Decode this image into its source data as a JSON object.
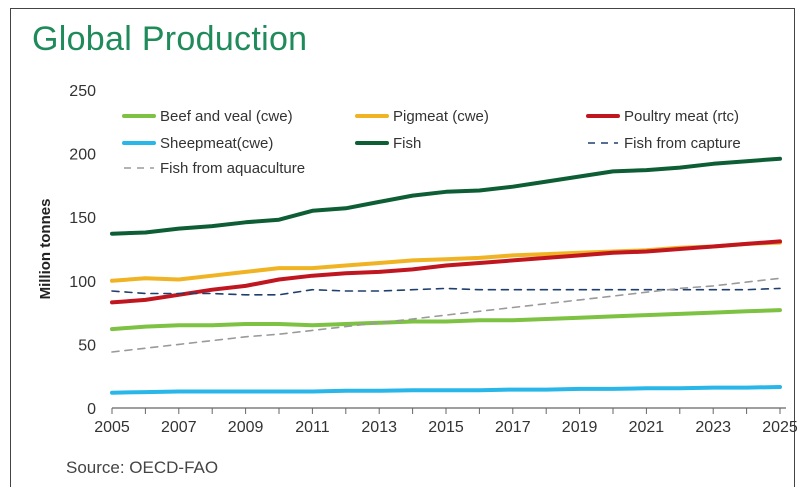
{
  "title": "Global Production",
  "source": "Source: OECD-FAO",
  "chart_data": {
    "type": "line",
    "title": "Global Production",
    "xlabel": "",
    "ylabel": "Million tonnes",
    "ylim": [
      0,
      250
    ],
    "yticks": [
      "0",
      "50",
      "100",
      "150",
      "200",
      "250"
    ],
    "xticks": [
      "2005",
      "2007",
      "2009",
      "2011",
      "2013",
      "2015",
      "2017",
      "2019",
      "2021",
      "2023",
      "2025"
    ],
    "x": [
      2005,
      2006,
      2007,
      2008,
      2009,
      2010,
      2011,
      2012,
      2013,
      2014,
      2015,
      2016,
      2017,
      2018,
      2019,
      2020,
      2021,
      2022,
      2023,
      2024,
      2025
    ],
    "series": [
      {
        "name": "Beef and veal (cwe)",
        "color": "#7dc242",
        "style": "solid",
        "values": [
          62,
          64,
          65,
          65,
          66,
          66,
          65,
          66,
          67,
          68,
          68,
          69,
          69,
          70,
          71,
          72,
          73,
          74,
          75,
          76,
          77
        ]
      },
      {
        "name": "Pigmeat (cwe)",
        "color": "#f0b323",
        "style": "solid",
        "values": [
          100,
          102,
          101,
          104,
          107,
          110,
          110,
          112,
          114,
          116,
          117,
          118,
          120,
          121,
          122,
          123,
          124,
          126,
          127,
          129,
          130
        ]
      },
      {
        "name": "Poultry meat (rtc)",
        "color": "#c0161f",
        "style": "solid",
        "values": [
          83,
          85,
          89,
          93,
          96,
          101,
          104,
          106,
          107,
          109,
          112,
          114,
          116,
          118,
          120,
          122,
          123,
          125,
          127,
          129,
          131
        ]
      },
      {
        "name": "Sheepmeat(cwe)",
        "color": "#29b6e8",
        "style": "solid",
        "values": [
          12,
          12.5,
          13,
          13,
          13,
          13,
          13,
          13.5,
          13.5,
          14,
          14,
          14,
          14.5,
          14.5,
          15,
          15,
          15.5,
          15.5,
          16,
          16,
          16.5
        ]
      },
      {
        "name": "Fish",
        "color": "#0e5e35",
        "style": "solid",
        "values": [
          137,
          138,
          141,
          143,
          146,
          148,
          155,
          157,
          162,
          167,
          170,
          171,
          174,
          178,
          182,
          186,
          187,
          189,
          192,
          194,
          196
        ]
      },
      {
        "name": "Fish from capture",
        "color": "#1f3f6e",
        "style": "dashed",
        "values": [
          92,
          90,
          90,
          90,
          89,
          89,
          93,
          92,
          92,
          93,
          94,
          93,
          93,
          93,
          93,
          93,
          93,
          93,
          93,
          93,
          94
        ]
      },
      {
        "name": "Fish from aquaculture",
        "color": "#9a9a9a",
        "style": "dashed",
        "values": [
          44,
          47,
          50,
          53,
          56,
          58,
          61,
          64,
          67,
          70,
          73,
          76,
          79,
          82,
          85,
          88,
          91,
          94,
          96,
          99,
          102
        ]
      }
    ],
    "legend": "top, inside plot area"
  }
}
